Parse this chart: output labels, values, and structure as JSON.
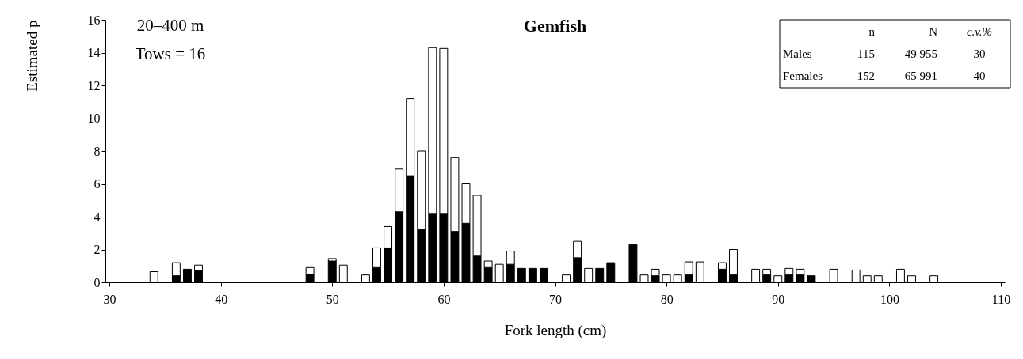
{
  "chart_data": {
    "type": "bar",
    "title": "Gemfish",
    "xlabel": "Fork length (cm)",
    "ylabel": "Estimated p",
    "x": [
      34,
      36,
      37,
      38,
      48,
      50,
      51,
      53,
      54,
      55,
      56,
      57,
      58,
      59,
      60,
      61,
      62,
      63,
      64,
      65,
      66,
      67,
      68,
      69,
      71,
      72,
      73,
      74,
      75,
      77,
      78,
      79,
      80,
      81,
      82,
      83,
      85,
      86,
      88,
      89,
      90,
      91,
      92,
      93,
      95,
      97,
      98,
      99,
      101,
      102,
      104
    ],
    "stacked": true,
    "series": [
      {
        "color": "#000000",
        "values": [
          null,
          0.4,
          0.8,
          0.7,
          0.5,
          1.3,
          null,
          null,
          0.9,
          2.1,
          4.3,
          6.5,
          3.2,
          4.2,
          4.2,
          3.1,
          3.6,
          1.6,
          0.9,
          null,
          1.1,
          0.85,
          0.85,
          0.85,
          null,
          1.5,
          null,
          0.85,
          1.2,
          2.3,
          null,
          0.4,
          null,
          null,
          0.45,
          null,
          0.8,
          0.45,
          null,
          0.45,
          null,
          0.45,
          0.45,
          0.4,
          null,
          null,
          null,
          null,
          null,
          null,
          null
        ]
      },
      {
        "color": "#ffffff",
        "values": [
          0.65,
          0.8,
          null,
          0.35,
          0.4,
          0.15,
          1.05,
          0.45,
          1.2,
          1.3,
          2.6,
          4.7,
          4.8,
          10.1,
          10.05,
          4.5,
          2.4,
          3.7,
          0.4,
          1.1,
          0.8,
          null,
          null,
          null,
          0.45,
          1.0,
          0.85,
          null,
          null,
          null,
          0.45,
          0.4,
          0.45,
          0.45,
          0.8,
          1.25,
          0.4,
          1.55,
          0.8,
          0.35,
          0.4,
          0.4,
          0.35,
          null,
          0.8,
          0.75,
          0.4,
          0.4,
          0.8,
          0.4,
          0.4
        ]
      }
    ],
    "xlim": [
      30,
      110
    ],
    "xticks": [
      30,
      40,
      50,
      60,
      70,
      80,
      90,
      100,
      110
    ],
    "ylim": [
      0,
      16
    ],
    "yticks": [
      0,
      2,
      4,
      6,
      8,
      10,
      12,
      14,
      16
    ],
    "annotations": [
      "20–400 m",
      "Tows = 16",
      "n",
      "N",
      "c.v.%",
      "Males",
      "115",
      "49 955",
      "30",
      "Females",
      "152",
      "65 991",
      "40"
    ]
  }
}
